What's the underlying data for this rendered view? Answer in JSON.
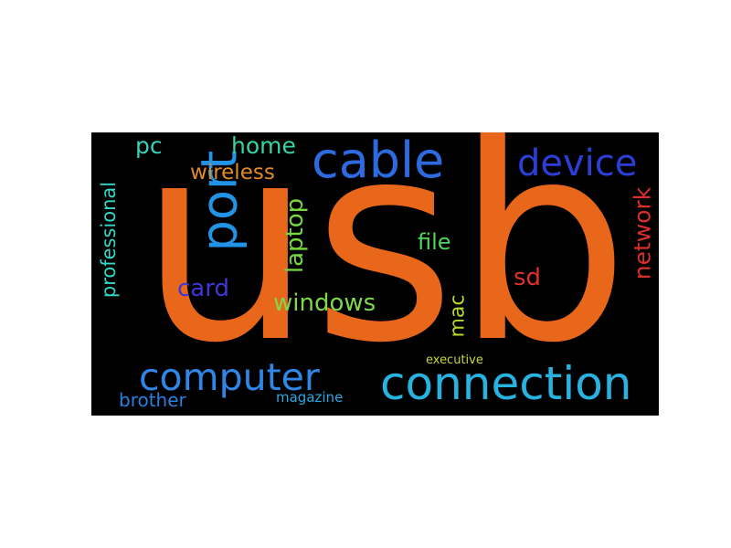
{
  "words": [
    {
      "text": "usb",
      "color": "#e8671b"
    },
    {
      "text": "connection",
      "color": "#27b2e0"
    },
    {
      "text": "computer",
      "color": "#2f86e6"
    },
    {
      "text": "cable",
      "color": "#2d6ae0"
    },
    {
      "text": "port",
      "color": "#2393e6"
    },
    {
      "text": "device",
      "color": "#2b3fd6"
    },
    {
      "text": "laptop",
      "color": "#78d73c"
    },
    {
      "text": "network",
      "color": "#d8302a"
    },
    {
      "text": "windows",
      "color": "#7fd84a"
    },
    {
      "text": "wireless",
      "color": "#e08a2a"
    },
    {
      "text": "home",
      "color": "#39d3a3"
    },
    {
      "text": "card",
      "color": "#3e37d5"
    },
    {
      "text": "file",
      "color": "#52d35a"
    },
    {
      "text": "mac",
      "color": "#b5d72d"
    },
    {
      "text": "sd",
      "color": "#e0302c"
    },
    {
      "text": "pc",
      "color": "#38d2bb"
    },
    {
      "text": "professional",
      "color": "#35d6c6"
    },
    {
      "text": "brother",
      "color": "#2a7fe0"
    },
    {
      "text": "magazine",
      "color": "#2aa9e2"
    },
    {
      "text": "executive",
      "color": "#c8d83a"
    }
  ]
}
